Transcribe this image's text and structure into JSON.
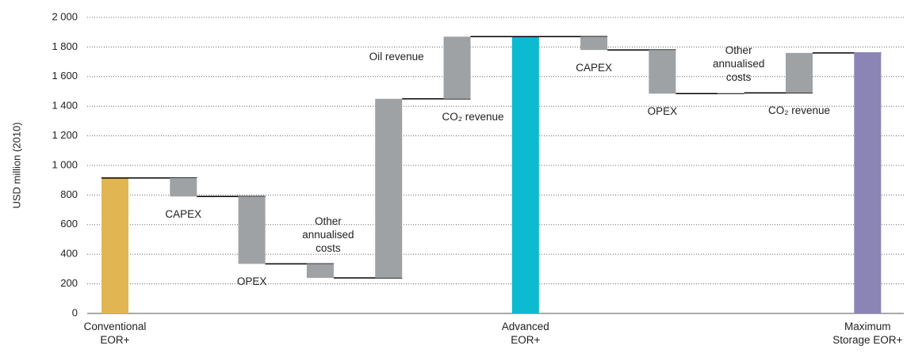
{
  "chart_data": {
    "type": "waterfall",
    "y_label": "USD million (2010)",
    "categories": [
      "Conventional EOR+",
      "CAPEX",
      "OPEX",
      "Other annualised costs",
      "Oil revenue",
      "CO₂ revenue",
      "Advanced EOR+",
      "CAPEX",
      "OPEX",
      "Other annualised costs",
      "CO₂ revenue",
      "Maximum Storage EOR+"
    ],
    "measure": [
      "total",
      "relative",
      "relative",
      "relative",
      "relative",
      "relative",
      "total",
      "relative",
      "relative",
      "relative",
      "relative",
      "total"
    ],
    "values": [
      915,
      -125,
      -455,
      -95,
      1210,
      420,
      1870,
      -90,
      -295,
      5,
      270,
      1765
    ],
    "colors": [
      "#e2b553",
      "#9ea2a4",
      "#9ea2a4",
      "#9ea2a4",
      "#9ea2a4",
      "#9ea2a4",
      "#0cbad2",
      "#9ea2a4",
      "#9ea2a4",
      "#9ea2a4",
      "#9ea2a4",
      "#8b85b5"
    ],
    "ylim": [
      0,
      2000
    ],
    "yticks": [
      0,
      200,
      400,
      600,
      800,
      {
        "value": 1000,
        "label": "1 000"
      },
      {
        "value": 1200,
        "label": "1 200"
      },
      {
        "value": 1400,
        "label": "1 400"
      },
      {
        "value": 1600,
        "label": "1 600"
      },
      {
        "value": 1800,
        "label": "1 800"
      },
      {
        "value": 2000,
        "label": "2 000"
      }
    ],
    "grid": true
  }
}
